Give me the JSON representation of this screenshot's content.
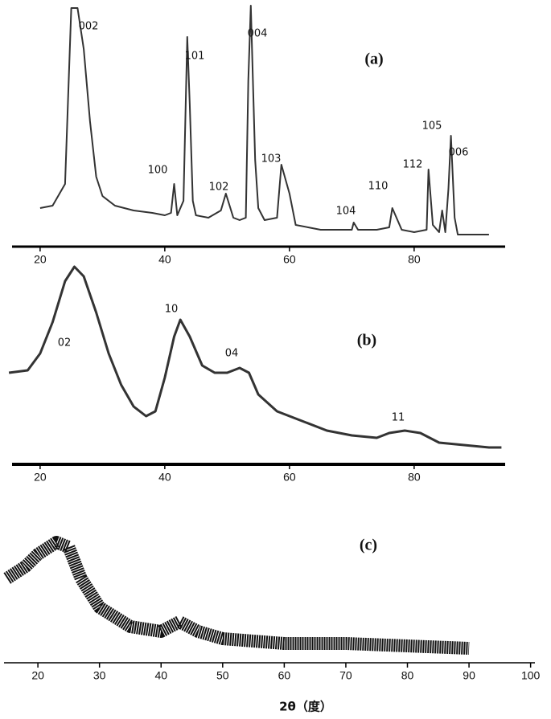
{
  "chart_data": [
    {
      "type": "line",
      "label": "(a)",
      "color": "#333333",
      "x": [
        20,
        22,
        24,
        25,
        25.5,
        26,
        27,
        28,
        29,
        30,
        32,
        35,
        38,
        40,
        41,
        41.5,
        42,
        43,
        43.6,
        44,
        44.5,
        45,
        47,
        49,
        49.8,
        51,
        52,
        53,
        53.4,
        53.8,
        54.5,
        55,
        56,
        58,
        58.7,
        60,
        61,
        63,
        65,
        68,
        70,
        70.3,
        71,
        74,
        76,
        76.5,
        78,
        80,
        82,
        82.3,
        83,
        84,
        84.5,
        85,
        85.5,
        85.9,
        86.5,
        87,
        88,
        90,
        92
      ],
      "values": [
        16,
        17,
        26,
        99,
        99,
        99,
        82,
        52,
        29,
        21,
        17,
        15,
        14,
        13,
        14,
        26,
        13,
        19,
        87,
        59,
        19,
        13,
        12,
        15,
        22,
        12,
        11,
        12,
        69,
        100,
        36,
        16,
        11,
        12,
        34,
        22,
        9,
        8,
        7,
        7,
        7,
        10,
        7,
        7,
        8,
        16,
        7,
        6,
        7,
        32,
        9,
        6,
        15,
        6,
        24,
        46,
        12,
        5,
        5,
        5,
        5
      ],
      "annotations": [
        "002",
        "101",
        "004",
        "100",
        "102",
        "103",
        "104",
        "110",
        "112",
        "105",
        "006"
      ],
      "xlim": [
        15.5,
        94.6
      ],
      "ylim": [
        0,
        100
      ],
      "xticks": [
        20,
        40,
        60,
        80
      ]
    },
    {
      "type": "line",
      "label": "(b)",
      "color": "#333333",
      "x": [
        15,
        18,
        20,
        22,
        24,
        25.5,
        27,
        29,
        31,
        33,
        35,
        37,
        38.5,
        40,
        41.5,
        42.5,
        44,
        46,
        48,
        50,
        52,
        53.5,
        55,
        58,
        62,
        66,
        70,
        74,
        76,
        78.5,
        81,
        84,
        88,
        92,
        94
      ],
      "values": [
        38,
        39,
        46,
        59,
        76,
        82,
        78,
        63,
        46,
        33,
        24,
        20,
        22,
        36,
        53,
        60,
        53,
        41,
        38,
        38,
        40,
        38,
        29,
        22,
        18,
        14,
        12,
        11,
        13,
        14,
        13,
        9,
        8,
        7,
        7
      ],
      "annotations": [
        "02",
        "10",
        "04",
        "11"
      ],
      "xlim": [
        15.5,
        94.6
      ],
      "ylim": [
        0,
        100
      ],
      "xticks": [
        20,
        40,
        60,
        80
      ]
    },
    {
      "type": "line",
      "label": "(c)",
      "color": "#111111",
      "x": [
        15,
        18,
        20,
        23,
        25,
        27,
        30,
        35,
        40,
        43,
        46,
        50,
        60,
        70,
        80,
        90
      ],
      "values": [
        35,
        40,
        45,
        50,
        48,
        35,
        23,
        15,
        13,
        17,
        13,
        10,
        8,
        8,
        7,
        6
      ],
      "annotations": [],
      "xlabel": "2θ（度）",
      "xlim": [
        14.5,
        100.7
      ],
      "ylim": [
        0,
        100
      ],
      "xticks": [
        20,
        30,
        40,
        50,
        60,
        70,
        80,
        90,
        100
      ]
    }
  ]
}
